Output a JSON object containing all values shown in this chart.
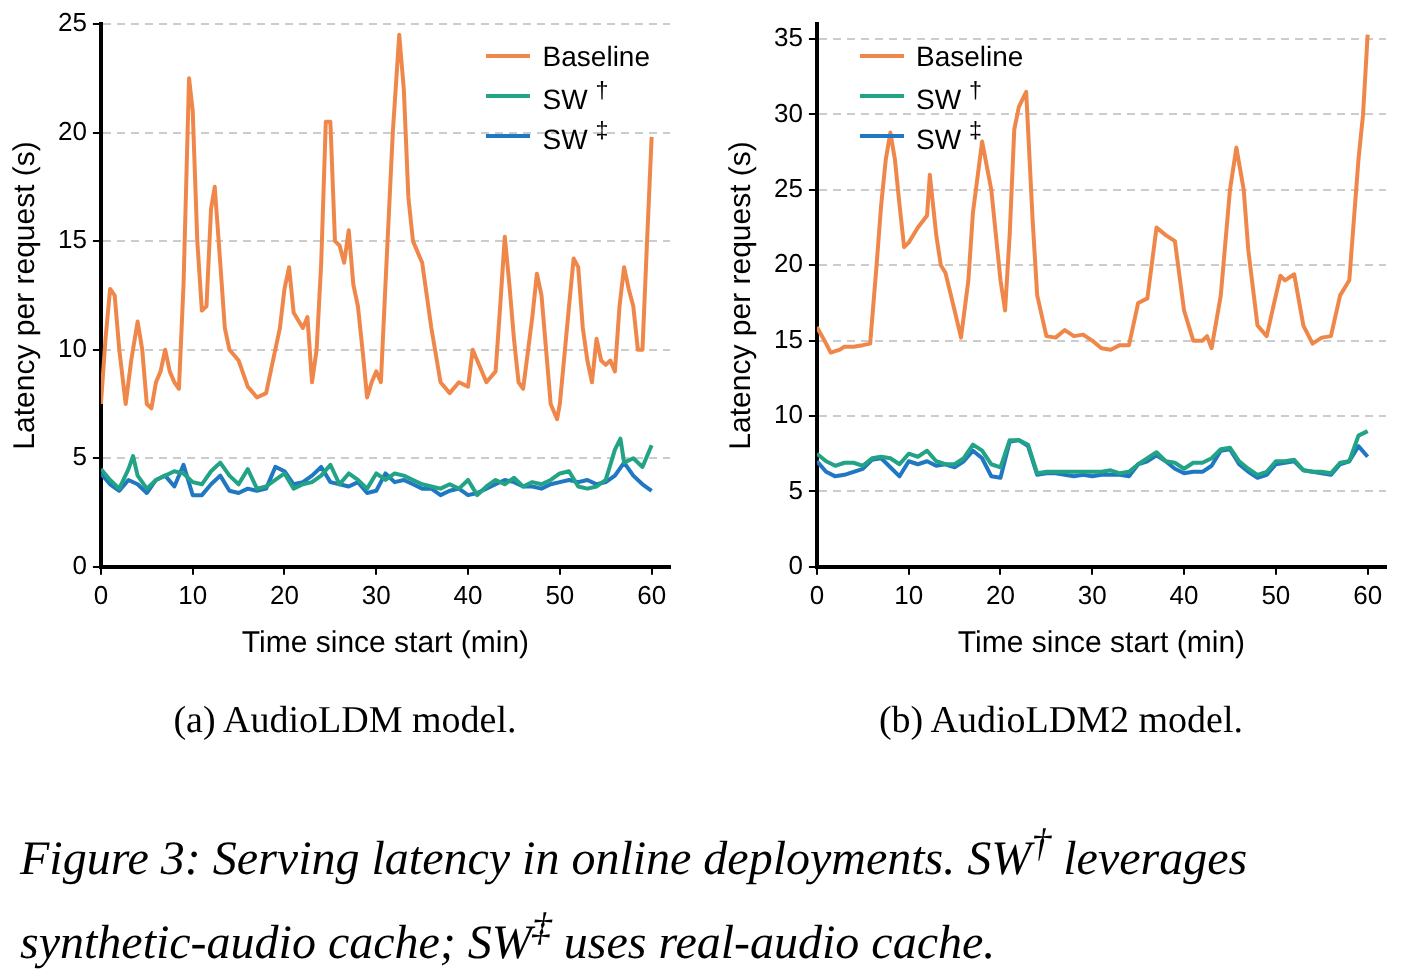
{
  "chart_data": [
    {
      "type": "line",
      "xlabel": "Time since start (min)",
      "ylabel": "Latency per request (s)",
      "xlim": [
        0,
        62
      ],
      "xticks": [
        0,
        10,
        20,
        30,
        40,
        50,
        60
      ],
      "ylim": [
        0,
        25
      ],
      "yticks": [
        0,
        5,
        10,
        15,
        20,
        25
      ],
      "grid": "y",
      "legend": "top right",
      "annotations": [
        "(a) AudioLDM model."
      ],
      "series": [
        {
          "name": "Baseline",
          "color": "#f0874a",
          "x": [
            0,
            0.5,
            1,
            1.5,
            2,
            2.7,
            3.3,
            4,
            4.5,
            5,
            5.5,
            6,
            6.5,
            7,
            7.5,
            8,
            8.5,
            9,
            9.6,
            10,
            10.5,
            11,
            11.5,
            12,
            12.4,
            13,
            13.5,
            14,
            15,
            16,
            17,
            18,
            19,
            19.5,
            20,
            20.5,
            21,
            22,
            22.5,
            23,
            23.5,
            24,
            24.5,
            25,
            25.5,
            26,
            26.5,
            27,
            27.5,
            28,
            28.5,
            29,
            29.5,
            30,
            30.5,
            31,
            31.8,
            32.5,
            33,
            33.5,
            34,
            35,
            36,
            37,
            38,
            39,
            40,
            40.5,
            41,
            42,
            43,
            43.5,
            44,
            44.5,
            45,
            45.5,
            46,
            47,
            47.5,
            48,
            48.5,
            49,
            49.7,
            50,
            51,
            51.5,
            52,
            52.5,
            53,
            53.5,
            54,
            54.5,
            55,
            55.5,
            56,
            56.5,
            57,
            57.5,
            58,
            58.5,
            59,
            59.5,
            60
          ],
          "values": [
            7.5,
            10.5,
            12.8,
            12.5,
            10,
            7.5,
            9.5,
            11.3,
            10,
            7.5,
            7.3,
            8.5,
            9,
            10,
            9,
            8.5,
            8.2,
            13,
            22.5,
            21,
            15,
            11.8,
            12,
            16.5,
            17.5,
            14,
            11,
            10,
            9.5,
            8.3,
            7.8,
            8,
            10,
            11,
            12.8,
            13.8,
            11.7,
            11,
            11.5,
            8.5,
            10,
            14,
            20.5,
            20.5,
            15,
            14.8,
            14,
            15.5,
            13,
            12,
            10,
            7.8,
            8.5,
            9,
            8.5,
            13,
            20,
            24.5,
            22,
            17,
            15,
            14,
            11,
            8.5,
            8,
            8.5,
            8.3,
            10,
            9.5,
            8.5,
            9,
            12,
            15.2,
            13,
            10.5,
            8.5,
            8.2,
            11.5,
            13.5,
            12.5,
            10,
            7.5,
            6.8,
            7.5,
            12,
            14.2,
            13.8,
            11,
            9.5,
            8.5,
            10.5,
            9.5,
            9.3,
            9.5,
            9,
            12,
            13.8,
            12.8,
            12,
            10,
            10,
            15,
            19.8
          ]
        },
        {
          "name": "SW $^{†}$",
          "color": "#22a386",
          "x": [
            0,
            1,
            2,
            3,
            3.5,
            4,
            5,
            6,
            7,
            8,
            9,
            10,
            11,
            12,
            13,
            14,
            15,
            16,
            17,
            18,
            19,
            20,
            21,
            22,
            23,
            24,
            25,
            26,
            27,
            28,
            29,
            30,
            31,
            32,
            33,
            34,
            35,
            36,
            37,
            38,
            39,
            40,
            41,
            42,
            43,
            44,
            45,
            46,
            47,
            48,
            49,
            50,
            51,
            52,
            53,
            54,
            55,
            56,
            56.6,
            57,
            58,
            59,
            60
          ],
          "values": [
            4.5,
            4,
            3.6,
            4.5,
            5.1,
            4.2,
            3.6,
            4,
            4.2,
            4.4,
            4.3,
            3.9,
            3.8,
            4.4,
            4.8,
            4.2,
            3.8,
            4.5,
            3.6,
            3.7,
            4,
            4.3,
            3.6,
            3.8,
            3.9,
            4.2,
            4.7,
            3.8,
            4.3,
            4,
            3.6,
            4.3,
            4,
            4.3,
            4.2,
            4,
            3.8,
            3.7,
            3.6,
            3.8,
            3.6,
            4,
            3.3,
            3.7,
            4,
            3.8,
            4.1,
            3.7,
            3.9,
            3.8,
            4,
            4.3,
            4.4,
            3.7,
            3.6,
            3.7,
            4,
            5.4,
            5.9,
            4.8,
            5,
            4.6,
            5.6
          ]
        },
        {
          "name": "SW $^{‡}$",
          "color": "#1f78c1",
          "x": [
            0,
            1,
            2,
            3,
            4,
            5,
            6,
            7,
            8,
            9,
            10,
            11,
            12,
            13,
            14,
            15,
            16,
            17,
            18,
            19,
            20,
            21,
            22,
            23,
            24,
            25,
            26,
            27,
            28,
            29,
            30,
            31,
            32,
            33,
            34,
            35,
            36,
            37,
            38,
            39,
            40,
            41,
            42,
            43,
            44,
            45,
            46,
            47,
            48,
            49,
            50,
            51,
            52,
            53,
            54,
            55,
            56,
            57,
            58,
            59,
            60
          ],
          "values": [
            4.3,
            3.8,
            3.5,
            4,
            3.8,
            3.4,
            4,
            4.2,
            3.7,
            4.7,
            3.3,
            3.3,
            3.8,
            4.2,
            3.5,
            3.4,
            3.6,
            3.5,
            3.6,
            4.6,
            4.4,
            3.8,
            3.9,
            4.2,
            4.6,
            3.9,
            3.8,
            3.7,
            3.9,
            3.4,
            3.5,
            4.3,
            3.9,
            4,
            3.8,
            3.6,
            3.6,
            3.3,
            3.5,
            3.6,
            3.3,
            3.4,
            3.6,
            3.8,
            4,
            3.9,
            3.7,
            3.7,
            3.6,
            3.8,
            3.9,
            4,
            3.9,
            4,
            3.8,
            3.9,
            4.2,
            4.8,
            4.2,
            3.8,
            3.5
          ]
        }
      ]
    },
    {
      "type": "line",
      "xlabel": "Time since start (min)",
      "ylabel": "Latency per request (s)",
      "xlim": [
        0,
        62
      ],
      "xticks": [
        0,
        10,
        20,
        30,
        40,
        50,
        60
      ],
      "ylim": [
        0,
        36
      ],
      "yticks": [
        0,
        5,
        10,
        15,
        20,
        25,
        30,
        35
      ],
      "grid": "y",
      "legend": "top left",
      "annotations": [
        "(b) AudioLDM2 model.",
        "Figure 3: Serving latency in online deployments. SW$^{†}$ leverages synthetic-audio cache; SW$^{‡}$ uses real-audio cache."
      ],
      "series": [
        {
          "name": "Baseline",
          "color": "#f0874a",
          "x": [
            0,
            1,
            1.5,
            2.5,
            3,
            4,
            5,
            5.8,
            6.5,
            7,
            7.5,
            8,
            8.5,
            9,
            9.5,
            10,
            11,
            12,
            12.3,
            13,
            13.5,
            14,
            15,
            15.7,
            16.5,
            17,
            18,
            19,
            20,
            20.5,
            21,
            21.5,
            22,
            22.8,
            23.5,
            24,
            25,
            26,
            27,
            28,
            29,
            30,
            31,
            32,
            33,
            34,
            35,
            36,
            37,
            38,
            39,
            40,
            41,
            42,
            42.5,
            43,
            44,
            45,
            45.7,
            46.5,
            47,
            48,
            49,
            50,
            50.5,
            51,
            52,
            53,
            54,
            55,
            56,
            57,
            58,
            59,
            59.5,
            60
          ],
          "values": [
            15.9,
            14.8,
            14.2,
            14.4,
            14.6,
            14.6,
            14.7,
            14.8,
            20,
            24,
            27,
            28.8,
            27,
            24,
            21.2,
            21.5,
            22.5,
            23.3,
            26,
            22,
            20,
            19.5,
            17,
            15.2,
            19,
            23.5,
            28.2,
            25,
            19,
            17,
            22,
            29,
            30.5,
            31.5,
            23,
            18,
            15.3,
            15.2,
            15.7,
            15.3,
            15.4,
            15,
            14.5,
            14.4,
            14.7,
            14.7,
            17.5,
            17.8,
            22.5,
            22,
            21.6,
            17,
            15,
            15,
            15.3,
            14.5,
            18,
            25,
            27.8,
            25,
            21,
            16,
            15.3,
            18,
            19.3,
            19,
            19.4,
            16,
            14.8,
            15.2,
            15.3,
            18,
            19,
            27,
            30,
            35.3
          ]
        },
        {
          "name": "SW $^{†}$",
          "color": "#22a386",
          "x": [
            0,
            1,
            2,
            3,
            4,
            5,
            6,
            7,
            8,
            9,
            10,
            11,
            12,
            13,
            14,
            15,
            16,
            17,
            18,
            19,
            20,
            21,
            22,
            23,
            24,
            25,
            26,
            27,
            28,
            29,
            30,
            31,
            32,
            33,
            34,
            35,
            36,
            37,
            38,
            39,
            40,
            41,
            42,
            43,
            44,
            45,
            46,
            47,
            48,
            49,
            50,
            51,
            52,
            53,
            54,
            55,
            56,
            57,
            58,
            59,
            60
          ],
          "values": [
            7.5,
            7,
            6.7,
            6.9,
            6.9,
            6.7,
            7.2,
            7.3,
            7.2,
            6.8,
            7.5,
            7.3,
            7.7,
            7,
            6.8,
            6.8,
            7.2,
            8.1,
            7.7,
            6.8,
            6.6,
            8.4,
            8.4,
            8.1,
            6.2,
            6.3,
            6.3,
            6.3,
            6.3,
            6.3,
            6.3,
            6.3,
            6.4,
            6.2,
            6.3,
            6.8,
            7.2,
            7.6,
            7,
            6.9,
            6.5,
            6.9,
            6.9,
            7.2,
            7.8,
            7.9,
            7,
            6.5,
            6.1,
            6.3,
            7,
            7,
            7.1,
            6.4,
            6.3,
            6.3,
            6.2,
            6.9,
            7,
            8.7,
            9
          ]
        },
        {
          "name": "SW $^{‡}$",
          "color": "#1f78c1",
          "x": [
            0,
            1,
            2,
            3,
            4,
            5,
            6,
            7,
            8,
            9,
            10,
            11,
            12,
            13,
            14,
            15,
            16,
            17,
            18,
            19,
            20,
            21,
            22,
            23,
            24,
            25,
            26,
            27,
            28,
            29,
            30,
            31,
            32,
            33,
            34,
            35,
            36,
            37,
            38,
            39,
            40,
            41,
            42,
            43,
            44,
            45,
            46,
            47,
            48,
            49,
            50,
            51,
            52,
            53,
            54,
            55,
            56,
            57,
            58,
            59,
            60
          ],
          "values": [
            7,
            6.3,
            6,
            6.1,
            6.3,
            6.5,
            7.1,
            7.2,
            6.6,
            6,
            7,
            6.8,
            7,
            6.7,
            6.8,
            6.6,
            7,
            7.7,
            7.2,
            6,
            5.9,
            8.3,
            8.4,
            8,
            6.1,
            6.2,
            6.2,
            6.1,
            6,
            6.1,
            6,
            6.1,
            6.1,
            6.1,
            6,
            6.8,
            7,
            7.4,
            7,
            6.5,
            6.2,
            6.3,
            6.3,
            6.7,
            7.7,
            7.8,
            6.8,
            6.3,
            5.9,
            6.1,
            6.8,
            6.9,
            7,
            6.4,
            6.3,
            6.2,
            6.1,
            6.8,
            7,
            8,
            7.3
          ]
        }
      ]
    }
  ]
}
